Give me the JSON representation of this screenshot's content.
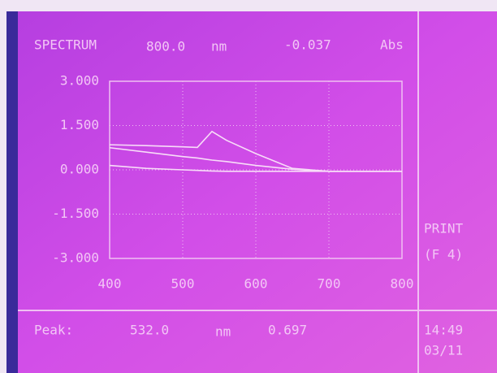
{
  "header": {
    "mode": "SPECTRUM",
    "wavelength": "800.0",
    "wavelength_unit": "nm",
    "reading": "-0.037",
    "reading_unit": "Abs"
  },
  "chart_data": {
    "type": "line",
    "x": [
      400,
      450,
      500,
      520,
      540,
      560,
      600,
      650,
      700,
      750,
      800
    ],
    "series": [
      {
        "color": "#f8dcf8",
        "values": [
          0.85,
          0.82,
          0.78,
          0.76,
          1.3,
          1.0,
          0.55,
          0.05,
          -0.05,
          -0.05,
          -0.05
        ]
      },
      {
        "color": "#f8dcf8",
        "values": [
          0.75,
          0.6,
          0.45,
          0.4,
          0.33,
          0.28,
          0.15,
          0.02,
          -0.05,
          -0.05,
          -0.05
        ]
      },
      {
        "color": "#f8dcf8",
        "values": [
          0.15,
          0.05,
          0.0,
          -0.02,
          -0.04,
          -0.05,
          -0.05,
          -0.05,
          -0.05,
          -0.05,
          -0.05
        ]
      }
    ],
    "xlim": [
      400,
      800
    ],
    "xticks": [
      400,
      500,
      600,
      700,
      800
    ],
    "ylim": [
      -3,
      3
    ],
    "yticks": [
      {
        "value": 3,
        "label": "3.000"
      },
      {
        "value": 1.5,
        "label": "1.500"
      },
      {
        "value": 0,
        "label": "0.000"
      },
      {
        "value": -1.5,
        "label": "-1.500"
      },
      {
        "value": -3,
        "label": "-3.000"
      }
    ],
    "grid": true
  },
  "footer": {
    "label": "Peak:",
    "wavelength": "532.0",
    "wavelength_unit": "nm",
    "value": "0.697"
  },
  "side": {
    "print": "PRINT",
    "key": "(F 4)",
    "time": "14:49",
    "date": "03/11"
  }
}
